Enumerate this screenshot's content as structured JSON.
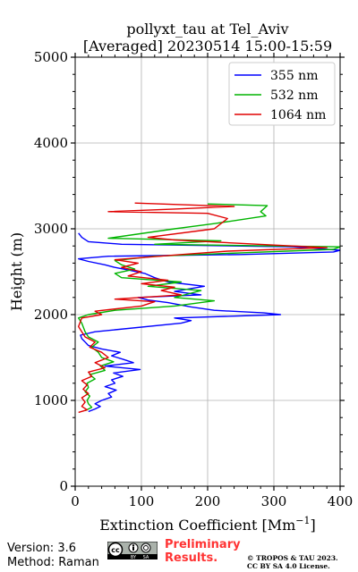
{
  "chart_data": {
    "type": "line",
    "title_line1": "pollyxt_tau at Tel_Aviv",
    "title_line2": "[Averaged] 20230514 15:00-15:59",
    "xlabel": "Extinction Coefficient [Mm",
    "xlabel_sup": "−1",
    "xlabel_end": "]",
    "ylabel": "Height (m)",
    "xlim": [
      0,
      400
    ],
    "ylim": [
      0,
      5000
    ],
    "x_ticks": [
      "0",
      "100",
      "200",
      "300",
      "400"
    ],
    "y_ticks": [
      "0",
      "1000",
      "2000",
      "3000",
      "4000",
      "5000"
    ],
    "grid": true,
    "legend_position": "top-right",
    "series": [
      {
        "name": "355 nm",
        "color": "#0000ff",
        "points": [
          [
            20,
            870
          ],
          [
            30,
            900
          ],
          [
            38,
            930
          ],
          [
            30,
            960
          ],
          [
            40,
            1000
          ],
          [
            55,
            1040
          ],
          [
            50,
            1080
          ],
          [
            62,
            1120
          ],
          [
            45,
            1160
          ],
          [
            60,
            1200
          ],
          [
            55,
            1240
          ],
          [
            72,
            1280
          ],
          [
            58,
            1320
          ],
          [
            98,
            1360
          ],
          [
            45,
            1400
          ],
          [
            88,
            1440
          ],
          [
            72,
            1480
          ],
          [
            55,
            1520
          ],
          [
            68,
            1560
          ],
          [
            40,
            1600
          ],
          [
            20,
            1640
          ],
          [
            15,
            1680
          ],
          [
            10,
            1720
          ],
          [
            8,
            1760
          ],
          [
            30,
            1800
          ],
          [
            160,
            1900
          ],
          [
            175,
            1930
          ],
          [
            150,
            1960
          ],
          [
            310,
            2000
          ],
          [
            285,
            2020
          ],
          [
            210,
            2050
          ],
          [
            175,
            2090
          ],
          [
            140,
            2140
          ],
          [
            110,
            2170
          ],
          [
            95,
            2200
          ],
          [
            190,
            2230
          ],
          [
            150,
            2270
          ],
          [
            195,
            2330
          ],
          [
            140,
            2380
          ],
          [
            120,
            2430
          ],
          [
            105,
            2480
          ],
          [
            80,
            2520
          ],
          [
            60,
            2550
          ],
          [
            45,
            2580
          ],
          [
            20,
            2620
          ],
          [
            5,
            2650
          ],
          [
            50,
            2680
          ],
          [
            250,
            2700
          ],
          [
            390,
            2730
          ],
          [
            400,
            2750
          ],
          [
            330,
            2790
          ],
          [
            70,
            2820
          ],
          [
            20,
            2850
          ],
          [
            10,
            2900
          ],
          [
            5,
            2950
          ]
        ]
      },
      {
        "name": "532 nm",
        "color": "#00b400",
        "points": [
          [
            15,
            880
          ],
          [
            25,
            920
          ],
          [
            20,
            960
          ],
          [
            18,
            1000
          ],
          [
            22,
            1050
          ],
          [
            15,
            1100
          ],
          [
            20,
            1150
          ],
          [
            18,
            1200
          ],
          [
            30,
            1250
          ],
          [
            22,
            1300
          ],
          [
            45,
            1350
          ],
          [
            38,
            1400
          ],
          [
            58,
            1450
          ],
          [
            40,
            1500
          ],
          [
            35,
            1560
          ],
          [
            25,
            1620
          ],
          [
            35,
            1680
          ],
          [
            20,
            1740
          ],
          [
            15,
            1800
          ],
          [
            10,
            1900
          ],
          [
            5,
            1960
          ],
          [
            20,
            2000
          ],
          [
            60,
            2050
          ],
          [
            150,
            2100
          ],
          [
            210,
            2160
          ],
          [
            150,
            2200
          ],
          [
            170,
            2240
          ],
          [
            190,
            2280
          ],
          [
            110,
            2330
          ],
          [
            160,
            2380
          ],
          [
            70,
            2430
          ],
          [
            60,
            2480
          ],
          [
            90,
            2530
          ],
          [
            70,
            2580
          ],
          [
            60,
            2630
          ],
          [
            120,
            2680
          ],
          [
            250,
            2720
          ],
          [
            390,
            2760
          ],
          [
            400,
            2790
          ],
          [
            120,
            2820
          ],
          [
            220,
            2860
          ],
          [
            50,
            2890
          ],
          [
            150,
            3000
          ],
          [
            210,
            3060
          ],
          [
            288,
            3150
          ],
          [
            280,
            3200
          ],
          [
            290,
            3270
          ],
          [
            200,
            3290
          ]
        ]
      },
      {
        "name": "1064 nm",
        "color": "#e00000",
        "points": [
          [
            5,
            860
          ],
          [
            18,
            890
          ],
          [
            10,
            930
          ],
          [
            15,
            980
          ],
          [
            10,
            1030
          ],
          [
            20,
            1080
          ],
          [
            12,
            1130
          ],
          [
            18,
            1180
          ],
          [
            10,
            1230
          ],
          [
            25,
            1280
          ],
          [
            20,
            1330
          ],
          [
            45,
            1380
          ],
          [
            30,
            1440
          ],
          [
            50,
            1500
          ],
          [
            40,
            1560
          ],
          [
            22,
            1620
          ],
          [
            30,
            1680
          ],
          [
            15,
            1740
          ],
          [
            10,
            1800
          ],
          [
            5,
            1860
          ],
          [
            10,
            1960
          ],
          [
            40,
            2000
          ],
          [
            30,
            2040
          ],
          [
            100,
            2100
          ],
          [
            120,
            2150
          ],
          [
            60,
            2180
          ],
          [
            160,
            2230
          ],
          [
            130,
            2280
          ],
          [
            150,
            2320
          ],
          [
            100,
            2360
          ],
          [
            140,
            2400
          ],
          [
            80,
            2450
          ],
          [
            100,
            2500
          ],
          [
            70,
            2550
          ],
          [
            95,
            2600
          ],
          [
            60,
            2640
          ],
          [
            160,
            2700
          ],
          [
            230,
            2740
          ],
          [
            380,
            2780
          ],
          [
            300,
            2810
          ],
          [
            150,
            2870
          ],
          [
            110,
            2900
          ],
          [
            210,
            3000
          ],
          [
            230,
            3120
          ],
          [
            200,
            3180
          ],
          [
            50,
            3200
          ],
          [
            150,
            3230
          ],
          [
            240,
            3260
          ],
          [
            90,
            3300
          ]
        ]
      }
    ]
  },
  "footer": {
    "version": "Version: 3.6",
    "method": "Method: Raman",
    "preliminary_line1": "Preliminary",
    "preliminary_line2": "Results.",
    "copyright_line1": "© TROPOS & TAU 2023.",
    "copyright_line2": "CC BY SA 4.0 License.",
    "preliminary_color": "#ff3333",
    "cc_label_by": "BY",
    "cc_label_sa": "SA"
  }
}
